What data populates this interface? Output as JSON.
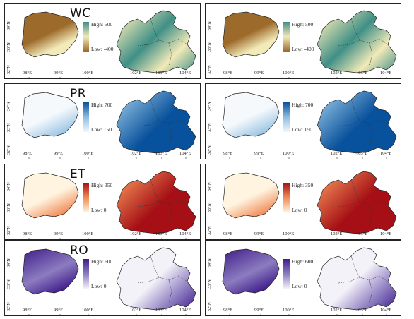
{
  "x_ticks_left": [
    "98°E",
    "99°E",
    "100°E",
    "102°E",
    "103°E",
    "104°E"
  ],
  "y_ticks": [
    "34°N",
    "33°N",
    "32°N"
  ],
  "rows": [
    {
      "variable": "WC",
      "high": "High: 500",
      "low": "Low: -400",
      "ramp_low": "#9c6a2a",
      "ramp_mid": "#f2eab8",
      "ramp_high": "#3f8f86"
    },
    {
      "variable": "PR",
      "high": "High: 700",
      "low": "Low: 150",
      "ramp_low": "#f4f8fc",
      "ramp_mid": "#8dbde0",
      "ramp_high": "#08519c"
    },
    {
      "variable": "ET",
      "high": "High: 350",
      "low": "Low: 0",
      "ramp_low": "#fff4df",
      "ramp_mid": "#f08a55",
      "ramp_high": "#a50f15"
    },
    {
      "variable": "RO",
      "high": "High: 600",
      "low": "Low: 0",
      "ramp_low": "#f4f2f9",
      "ramp_mid": "#8c7cc0",
      "ramp_high": "#3f1c8a"
    }
  ]
}
